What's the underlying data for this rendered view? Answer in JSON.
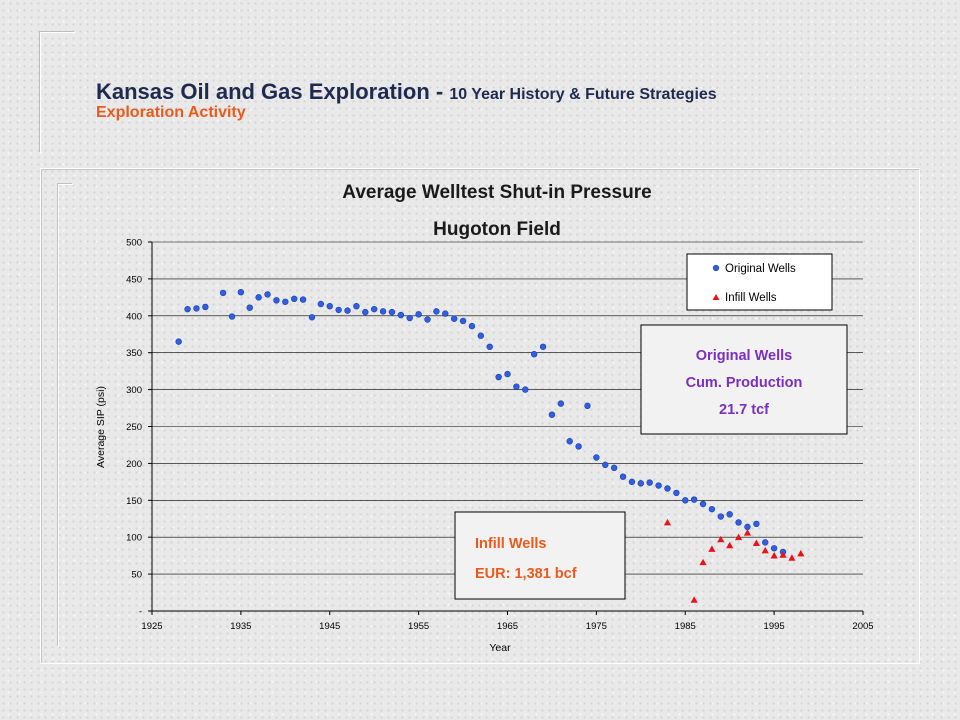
{
  "slide": {
    "title_main": "Kansas Oil and Gas Exploration",
    "title_separator": " - ",
    "title_sub": "10 Year History & Future Strategies",
    "subtitle": "Exploration Activity"
  },
  "chart_data": {
    "type": "scatter",
    "title": "Average Welltest Shut-in Pressure",
    "subtitle": "Hugoton Field",
    "xlabel": "Year",
    "ylabel": "Average SIP (psi)",
    "xlim": [
      1925,
      2005
    ],
    "ylim": [
      0,
      500
    ],
    "xticks": [
      "1925",
      "1935",
      "1945",
      "1955",
      "1965",
      "1975",
      "1985",
      "1995",
      "2005"
    ],
    "yticks": [
      "-",
      "50",
      "100",
      "150",
      "200",
      "250",
      "300",
      "350",
      "400",
      "450",
      "500"
    ],
    "grid": "horizontal",
    "legend": "top-right",
    "series": [
      {
        "name": "Original Wells",
        "marker": "circle",
        "color": "#2e5fe6",
        "points": [
          [
            1928,
            365
          ],
          [
            1929,
            409
          ],
          [
            1930,
            410
          ],
          [
            1931,
            412
          ],
          [
            1933,
            431
          ],
          [
            1934,
            399
          ],
          [
            1935,
            432
          ],
          [
            1936,
            411
          ],
          [
            1937,
            425
          ],
          [
            1938,
            429
          ],
          [
            1939,
            421
          ],
          [
            1940,
            419
          ],
          [
            1941,
            423
          ],
          [
            1942,
            422
          ],
          [
            1943,
            398
          ],
          [
            1944,
            416
          ],
          [
            1945,
            413
          ],
          [
            1946,
            408
          ],
          [
            1947,
            407
          ],
          [
            1948,
            413
          ],
          [
            1949,
            405
          ],
          [
            1950,
            409
          ],
          [
            1951,
            406
          ],
          [
            1952,
            405
          ],
          [
            1953,
            401
          ],
          [
            1954,
            397
          ],
          [
            1955,
            402
          ],
          [
            1956,
            395
          ],
          [
            1957,
            406
          ],
          [
            1958,
            403
          ],
          [
            1959,
            396
          ],
          [
            1960,
            393
          ],
          [
            1961,
            386
          ],
          [
            1962,
            373
          ],
          [
            1963,
            358
          ],
          [
            1964,
            317
          ],
          [
            1965,
            321
          ],
          [
            1966,
            304
          ],
          [
            1967,
            300
          ],
          [
            1968,
            348
          ],
          [
            1969,
            358
          ],
          [
            1970,
            266
          ],
          [
            1971,
            281
          ],
          [
            1972,
            230
          ],
          [
            1973,
            223
          ],
          [
            1974,
            278
          ],
          [
            1975,
            208
          ],
          [
            1976,
            198
          ],
          [
            1977,
            194
          ],
          [
            1978,
            182
          ],
          [
            1979,
            175
          ],
          [
            1980,
            173
          ],
          [
            1981,
            174
          ],
          [
            1982,
            170
          ],
          [
            1983,
            166
          ],
          [
            1984,
            160
          ],
          [
            1985,
            150
          ],
          [
            1986,
            151
          ],
          [
            1987,
            145
          ],
          [
            1988,
            138
          ],
          [
            1989,
            128
          ],
          [
            1990,
            131
          ],
          [
            1991,
            120
          ],
          [
            1992,
            114
          ],
          [
            1993,
            118
          ],
          [
            1994,
            93
          ],
          [
            1995,
            85
          ],
          [
            1996,
            80
          ]
        ]
      },
      {
        "name": "Infill Wells",
        "marker": "triangle",
        "color": "#e8141c",
        "points": [
          [
            1983,
            120
          ],
          [
            1986,
            15
          ],
          [
            1987,
            66
          ],
          [
            1988,
            84
          ],
          [
            1989,
            97
          ],
          [
            1990,
            89
          ],
          [
            1991,
            100
          ],
          [
            1992,
            106
          ],
          [
            1993,
            92
          ],
          [
            1994,
            82
          ],
          [
            1995,
            75
          ],
          [
            1996,
            76
          ],
          [
            1997,
            72
          ],
          [
            1998,
            78
          ]
        ]
      }
    ],
    "annotations": {
      "original": [
        "Original Wells",
        "Cum. Production",
        "21.7 tcf"
      ],
      "infill": [
        "Infill Wells",
        "EUR: 1,381 bcf"
      ]
    }
  }
}
